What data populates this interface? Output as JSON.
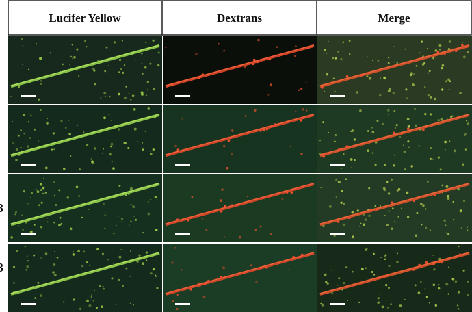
{
  "figure": {
    "columns": [
      "Lucifer Yellow",
      "Dextrans",
      "Merge"
    ],
    "row_labels": [
      "3",
      "3"
    ]
  }
}
